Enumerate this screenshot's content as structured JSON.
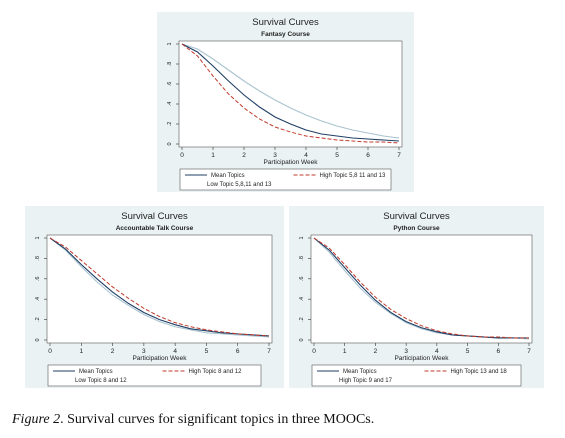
{
  "colors": {
    "panel_bg": "#eaf2f3",
    "plot_bg": "#ffffff",
    "mean": "#1f3f66",
    "high": "#c0392b",
    "low": "#a9c3cf"
  },
  "figure_caption": {
    "label": "Figure 2",
    "text": ". Survival curves for significant topics in three MOOCs."
  },
  "chart_data": [
    {
      "type": "line",
      "title": "Survival Curves",
      "subtitle": "Fantasy Course",
      "xlabel": "Participation Week",
      "ylabel": "",
      "xlim": [
        0,
        7
      ],
      "ylim": [
        0,
        1
      ],
      "xticks": [
        "0",
        "1",
        "2",
        "3",
        "4",
        "5",
        "6",
        "7"
      ],
      "yticks": [
        "0",
        ".2",
        ".4",
        ".6",
        ".8",
        "1"
      ],
      "grid": false,
      "legend_placement": "bottom",
      "legend": [
        "Mean Topics",
        "High Topic 5,8 11 and 13",
        "Low Topic 5,8,11 and 13"
      ],
      "x": [
        0,
        0.5,
        1,
        1.5,
        2,
        2.5,
        3,
        3.5,
        4,
        4.5,
        5,
        5.5,
        6,
        6.5,
        7
      ],
      "series": [
        {
          "name": "Mean Topics",
          "style": "solid",
          "color": "#1f3f66",
          "values": [
            1.0,
            0.92,
            0.78,
            0.63,
            0.49,
            0.37,
            0.27,
            0.2,
            0.14,
            0.1,
            0.08,
            0.06,
            0.05,
            0.04,
            0.03
          ]
        },
        {
          "name": "High Topic 5,8 11 and 13",
          "style": "dashed",
          "color": "#c0392b",
          "values": [
            1.0,
            0.88,
            0.68,
            0.5,
            0.36,
            0.25,
            0.17,
            0.12,
            0.08,
            0.06,
            0.04,
            0.03,
            0.02,
            0.02,
            0.01
          ]
        },
        {
          "name": "Low Topic 5,8,11 and 13",
          "style": "solid",
          "color": "#a9c3cf",
          "values": [
            1.0,
            0.95,
            0.85,
            0.74,
            0.63,
            0.53,
            0.44,
            0.36,
            0.29,
            0.23,
            0.18,
            0.14,
            0.11,
            0.08,
            0.06
          ]
        }
      ]
    },
    {
      "type": "line",
      "title": "Survival Curves",
      "subtitle": "Accountable Talk Course",
      "xlabel": "Participation Week",
      "ylabel": "",
      "xlim": [
        0,
        7
      ],
      "ylim": [
        0,
        1
      ],
      "xticks": [
        "0",
        "1",
        "2",
        "3",
        "4",
        "5",
        "6",
        "7"
      ],
      "yticks": [
        "0",
        ".2",
        ".4",
        ".6",
        ".8",
        "1"
      ],
      "grid": false,
      "legend_placement": "bottom",
      "legend": [
        "Mean Topics",
        "High Topic 8 and 12",
        "Low Topic 8 and 12"
      ],
      "x": [
        0,
        0.5,
        1,
        1.5,
        2,
        2.5,
        3,
        3.5,
        4,
        4.5,
        5,
        5.5,
        6,
        6.5,
        7
      ],
      "series": [
        {
          "name": "Mean Topics",
          "style": "solid",
          "color": "#1f3f66",
          "values": [
            1.0,
            0.89,
            0.74,
            0.6,
            0.47,
            0.36,
            0.27,
            0.2,
            0.15,
            0.11,
            0.09,
            0.07,
            0.06,
            0.05,
            0.04
          ]
        },
        {
          "name": "High Topic 8 and 12",
          "style": "dashed",
          "color": "#c0392b",
          "values": [
            1.0,
            0.91,
            0.78,
            0.65,
            0.52,
            0.41,
            0.31,
            0.23,
            0.17,
            0.13,
            0.1,
            0.08,
            0.06,
            0.05,
            0.04
          ]
        },
        {
          "name": "Low Topic 8 and 12",
          "style": "solid",
          "color": "#a9c3cf",
          "values": [
            1.0,
            0.88,
            0.72,
            0.57,
            0.44,
            0.34,
            0.25,
            0.18,
            0.13,
            0.1,
            0.07,
            0.06,
            0.05,
            0.04,
            0.03
          ]
        }
      ]
    },
    {
      "type": "line",
      "title": "Survival Curves",
      "subtitle": "Python Course",
      "xlabel": "Participation Week",
      "ylabel": "",
      "xlim": [
        0,
        7
      ],
      "ylim": [
        0,
        1
      ],
      "xticks": [
        "0",
        "1",
        "2",
        "3",
        "4",
        "5",
        "6",
        "7"
      ],
      "yticks": [
        "0",
        ".2",
        ".4",
        ".6",
        ".8",
        "1"
      ],
      "grid": false,
      "legend_placement": "bottom",
      "legend": [
        "Mean Topics",
        "High Topic 13 and 18",
        "High Topic 9 and 17"
      ],
      "x": [
        0,
        0.5,
        1,
        1.5,
        2,
        2.5,
        3,
        3.5,
        4,
        4.5,
        5,
        5.5,
        6,
        6.5,
        7
      ],
      "series": [
        {
          "name": "Mean Topics",
          "style": "solid",
          "color": "#1f3f66",
          "values": [
            1.0,
            0.88,
            0.71,
            0.54,
            0.39,
            0.27,
            0.18,
            0.12,
            0.08,
            0.05,
            0.04,
            0.03,
            0.02,
            0.02,
            0.02
          ]
        },
        {
          "name": "High Topic 13 and 18",
          "style": "dashed",
          "color": "#c0392b",
          "values": [
            1.0,
            0.9,
            0.74,
            0.57,
            0.42,
            0.3,
            0.21,
            0.14,
            0.09,
            0.06,
            0.04,
            0.03,
            0.03,
            0.02,
            0.02
          ]
        },
        {
          "name": "High Topic 9 and 17",
          "style": "solid",
          "color": "#a9c3cf",
          "values": [
            1.0,
            0.86,
            0.68,
            0.51,
            0.37,
            0.26,
            0.17,
            0.11,
            0.07,
            0.05,
            0.04,
            0.03,
            0.02,
            0.02,
            0.01
          ]
        }
      ]
    }
  ]
}
